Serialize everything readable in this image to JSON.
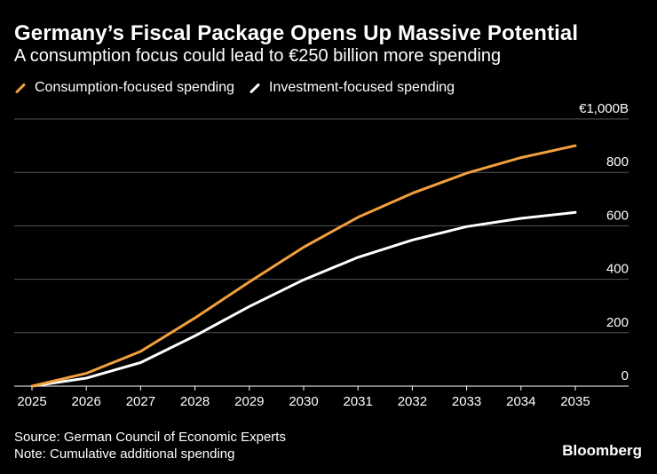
{
  "header": {
    "title": "Germany’s Fiscal Package Opens Up Massive Potential",
    "subtitle": "A consumption focus could lead to €250 billion more spending"
  },
  "legend": [
    {
      "label": "Consumption-focused spending",
      "color": "#f2a03d"
    },
    {
      "label": "Investment-focused spending",
      "color": "#ffffff"
    }
  ],
  "footer": {
    "source": "Source: German Council of Economic Experts",
    "note": "Note: Cumulative additional spending",
    "brand": "Bloomberg"
  },
  "chart_data": {
    "type": "line",
    "title": "Germany’s Fiscal Package Opens Up Massive Potential",
    "subtitle": "A consumption focus could lead to €250 billion more spending",
    "xlabel": "",
    "ylabel": "",
    "x": [
      "2025",
      "2026",
      "2027",
      "2028",
      "2029",
      "2030",
      "2031",
      "2032",
      "2033",
      "2034",
      "2035"
    ],
    "series": [
      {
        "name": "Consumption-focused spending",
        "color": "#f2a03d",
        "values": [
          0,
          48,
          130,
          255,
          390,
          520,
          632,
          722,
          797,
          855,
          900
        ]
      },
      {
        "name": "Investment-focused spending",
        "color": "#ffffff",
        "values": [
          0,
          30,
          88,
          188,
          298,
          398,
          482,
          547,
          597,
          628,
          650
        ]
      }
    ],
    "ylim": [
      0,
      1000
    ],
    "yticks": [
      0,
      200,
      400,
      600,
      800,
      1000
    ],
    "ytick_labels": [
      "0",
      "200",
      "400",
      "600",
      "800",
      "€1,000B"
    ],
    "grid": true,
    "legend_position": "top-left"
  }
}
